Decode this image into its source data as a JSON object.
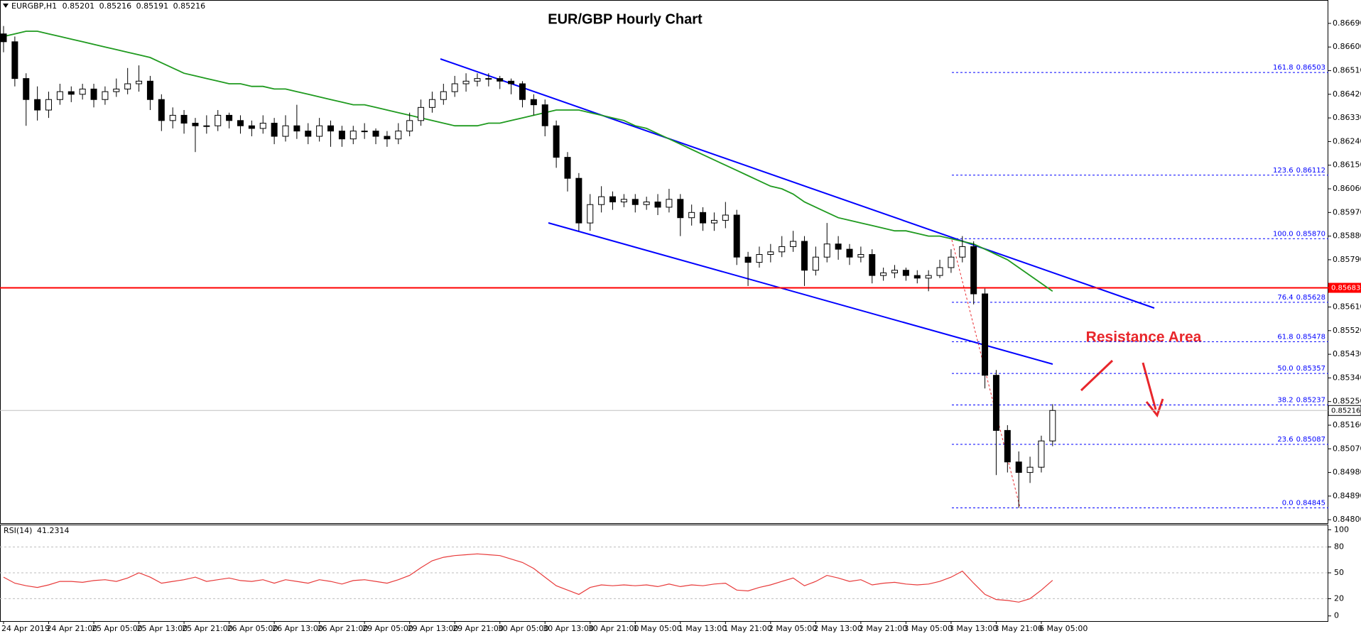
{
  "header": {
    "symbol": "EURGBP,H1",
    "ohlc": [
      0.85201,
      0.85216,
      0.85191,
      0.85216
    ]
  },
  "chart_data": [
    {
      "type": "candlestick",
      "title": "EUR/GBP Hourly Chart",
      "annotation": "Resistance Area",
      "categories": [
        "24 Apr 2019",
        null,
        null,
        null,
        "24 Apr 21:00",
        null,
        null,
        null,
        "25 Apr 05:00",
        null,
        null,
        null,
        "25 Apr 13:00",
        null,
        null,
        null,
        "25 Apr 21:00",
        null,
        null,
        null,
        "26 Apr 05:00",
        null,
        null,
        null,
        "26 Apr 13:00",
        null,
        null,
        null,
        "26 Apr 21:00",
        null,
        null,
        null,
        "29 Apr 05:00",
        null,
        null,
        null,
        "29 Apr 13:00",
        null,
        null,
        null,
        "29 Apr 21:00",
        null,
        null,
        null,
        "30 Apr 05:00",
        null,
        null,
        null,
        "30 Apr 13:00",
        null,
        null,
        null,
        "30 Apr 21:00",
        null,
        null,
        null,
        "1 May 05:00",
        null,
        null,
        null,
        "1 May 13:00",
        null,
        null,
        null,
        "1 May 21:00",
        null,
        null,
        null,
        "2 May 05:00",
        null,
        null,
        null,
        "2 May 13:00",
        null,
        null,
        null,
        "2 May 21:00",
        null,
        null,
        null,
        "3 May 05:00",
        null,
        null,
        null,
        "3 May 13:00",
        null,
        null,
        null,
        "3 May 21:00",
        null,
        null,
        null,
        "6 May 05:00",
        null
      ],
      "open": [
        0.8665,
        0.8662,
        0.8648,
        0.864,
        0.8636,
        0.864,
        0.8643,
        0.8642,
        0.8644,
        0.864,
        0.8643,
        0.8644,
        0.8646,
        0.8647,
        0.864,
        0.8632,
        0.8634,
        0.8631,
        0.863,
        0.863,
        0.8634,
        0.8632,
        0.863,
        0.8629,
        0.8631,
        0.8626,
        0.863,
        0.8628,
        0.8626,
        0.863,
        0.8628,
        0.8625,
        0.8628,
        0.8628,
        0.8626,
        0.8625,
        0.8628,
        0.8632,
        0.8637,
        0.864,
        0.8643,
        0.8646,
        0.8647,
        0.8648,
        0.8648,
        0.8647,
        0.8646,
        0.864,
        0.8638,
        0.863,
        0.8618,
        0.861,
        0.8593,
        0.86,
        0.8603,
        0.8601,
        0.8602,
        0.86,
        0.8601,
        0.8599,
        0.8602,
        0.8595,
        0.8597,
        0.8593,
        0.8594,
        0.8596,
        0.858,
        0.8578,
        0.8581,
        0.8582,
        0.8584,
        0.8586,
        0.8575,
        0.858,
        0.8585,
        0.8583,
        0.858,
        0.8581,
        0.8573,
        0.8574,
        0.8575,
        0.8573,
        0.8572,
        0.8573,
        0.8576,
        0.858,
        0.8584,
        0.8566,
        0.8535,
        0.8514,
        0.8502,
        0.8498,
        0.85,
        0.851
      ],
      "high": [
        0.8668,
        0.8664,
        0.865,
        0.8645,
        0.8643,
        0.8646,
        0.8645,
        0.8646,
        0.8646,
        0.8645,
        0.8648,
        0.8652,
        0.8653,
        0.8649,
        0.8642,
        0.8637,
        0.8636,
        0.8633,
        0.8634,
        0.8636,
        0.8635,
        0.8634,
        0.8632,
        0.8634,
        0.8633,
        0.8634,
        0.8638,
        0.8631,
        0.8633,
        0.8632,
        0.863,
        0.863,
        0.8631,
        0.8629,
        0.8628,
        0.8631,
        0.8635,
        0.864,
        0.8643,
        0.8646,
        0.8649,
        0.865,
        0.865,
        0.865,
        0.8649,
        0.8648,
        0.8647,
        0.8642,
        0.864,
        0.8632,
        0.862,
        0.8612,
        0.8604,
        0.8607,
        0.8605,
        0.8604,
        0.8604,
        0.8603,
        0.8604,
        0.8606,
        0.8604,
        0.86,
        0.8599,
        0.8597,
        0.8601,
        0.8598,
        0.8582,
        0.8584,
        0.8585,
        0.8588,
        0.859,
        0.8588,
        0.8584,
        0.8593,
        0.8588,
        0.8585,
        0.8584,
        0.8583,
        0.8576,
        0.8577,
        0.8576,
        0.8575,
        0.8575,
        0.8579,
        0.8583,
        0.8588,
        0.8586,
        0.8568,
        0.8537,
        0.8516,
        0.8506,
        0.8504,
        0.8512,
        0.8524
      ],
      "low": [
        0.8658,
        0.8645,
        0.863,
        0.8632,
        0.8633,
        0.8638,
        0.8639,
        0.864,
        0.8637,
        0.8638,
        0.8641,
        0.8642,
        0.8643,
        0.8636,
        0.8628,
        0.8629,
        0.8627,
        0.862,
        0.8627,
        0.8628,
        0.8629,
        0.8627,
        0.8626,
        0.8627,
        0.8623,
        0.8624,
        0.8625,
        0.8623,
        0.8624,
        0.8622,
        0.8622,
        0.8623,
        0.8625,
        0.8623,
        0.8622,
        0.8623,
        0.8626,
        0.863,
        0.8635,
        0.8638,
        0.8641,
        0.8643,
        0.8645,
        0.8645,
        0.8644,
        0.8642,
        0.8637,
        0.8634,
        0.8626,
        0.8614,
        0.8605,
        0.859,
        0.859,
        0.8597,
        0.8598,
        0.8599,
        0.8597,
        0.8598,
        0.8596,
        0.8597,
        0.8588,
        0.8592,
        0.859,
        0.859,
        0.8591,
        0.8577,
        0.8569,
        0.8576,
        0.8578,
        0.858,
        0.8582,
        0.8569,
        0.8573,
        0.8578,
        0.8579,
        0.8577,
        0.8578,
        0.857,
        0.8571,
        0.8572,
        0.8571,
        0.857,
        0.8567,
        0.8572,
        0.8574,
        0.8578,
        0.8562,
        0.853,
        0.8497,
        0.8498,
        0.84845,
        0.8494,
        0.8498,
        0.8508
      ],
      "close": [
        0.8662,
        0.8648,
        0.864,
        0.8636,
        0.864,
        0.8643,
        0.8642,
        0.8644,
        0.864,
        0.8643,
        0.8644,
        0.8646,
        0.8647,
        0.864,
        0.8632,
        0.8634,
        0.8631,
        0.863,
        0.863,
        0.8634,
        0.8632,
        0.863,
        0.8629,
        0.8631,
        0.8626,
        0.863,
        0.8628,
        0.8626,
        0.863,
        0.8628,
        0.8625,
        0.8628,
        0.8628,
        0.8626,
        0.8625,
        0.8628,
        0.8632,
        0.8637,
        0.864,
        0.8643,
        0.8646,
        0.8647,
        0.8648,
        0.8648,
        0.8647,
        0.8646,
        0.864,
        0.8638,
        0.863,
        0.8618,
        0.861,
        0.8593,
        0.86,
        0.8603,
        0.8601,
        0.8602,
        0.86,
        0.8601,
        0.8599,
        0.8602,
        0.8595,
        0.8597,
        0.8593,
        0.8594,
        0.8596,
        0.858,
        0.8578,
        0.8581,
        0.8582,
        0.8584,
        0.8586,
        0.8575,
        0.858,
        0.8585,
        0.8583,
        0.858,
        0.8581,
        0.8573,
        0.8574,
        0.8575,
        0.8573,
        0.8572,
        0.8573,
        0.8576,
        0.858,
        0.8584,
        0.8566,
        0.8535,
        0.8514,
        0.8502,
        0.8498,
        0.85,
        0.851,
        0.85216
      ],
      "up_color": "#ffffff",
      "down_color": "#000000",
      "ma": {
        "color": "#1f9a1f",
        "values": [
          0.8664,
          0.8665,
          0.8666,
          0.8666,
          0.8665,
          0.8664,
          0.8663,
          0.8662,
          0.8661,
          0.866,
          0.8659,
          0.8658,
          0.8657,
          0.8656,
          0.8654,
          0.8652,
          0.865,
          0.8649,
          0.8648,
          0.8647,
          0.8646,
          0.8646,
          0.8645,
          0.8645,
          0.8644,
          0.8644,
          0.8643,
          0.8642,
          0.8641,
          0.864,
          0.8639,
          0.8638,
          0.8638,
          0.8637,
          0.8636,
          0.8635,
          0.8634,
          0.8633,
          0.8632,
          0.8631,
          0.863,
          0.863,
          0.863,
          0.8631,
          0.8631,
          0.8632,
          0.8633,
          0.8634,
          0.8635,
          0.8636,
          0.8636,
          0.8636,
          0.8635,
          0.8634,
          0.8633,
          0.8632,
          0.863,
          0.8629,
          0.8627,
          0.8625,
          0.8623,
          0.8621,
          0.8619,
          0.8617,
          0.8615,
          0.8613,
          0.8611,
          0.8609,
          0.8607,
          0.8606,
          0.8604,
          0.8601,
          0.8599,
          0.8597,
          0.8595,
          0.8594,
          0.8593,
          0.8592,
          0.8591,
          0.859,
          0.859,
          0.8589,
          0.8588,
          0.8588,
          0.8587,
          0.8586,
          0.8585,
          0.8583,
          0.8581,
          0.8579,
          0.8576,
          0.8573,
          0.857,
          0.8567
        ]
      },
      "hline": {
        "value": 0.85683,
        "color": "#ff0000"
      },
      "fib_levels": [
        {
          "ratio": "161.8",
          "price": 0.86503
        },
        {
          "ratio": "123.6",
          "price": 0.86112
        },
        {
          "ratio": "100.0",
          "price": {
            "value": 0.8587,
            "label": "0.85870"
          }
        },
        {
          "ratio": "76.4",
          "price": 0.85628
        },
        {
          "ratio": "61.8",
          "price": 0.85478
        },
        {
          "ratio": "50.0",
          "price": 0.85357
        },
        {
          "ratio": "38.2",
          "price": 0.85237
        },
        {
          "ratio": "23.6",
          "price": 0.85087
        },
        {
          "ratio": "0.0",
          "price": 0.84845
        }
      ],
      "fib_color": "#0000ff",
      "ylim": [
        0.84787,
        0.86779
      ],
      "yticks": [
        {
          "value": 0.8669,
          "label": "0.86690"
        },
        {
          "value": 0.866,
          "label": "0.86600"
        },
        {
          "value": 0.8651,
          "label": "0.86510"
        },
        {
          "value": 0.8642,
          "label": "0.86420"
        },
        {
          "value": 0.8633,
          "label": "0.86330"
        },
        {
          "value": 0.8624,
          "label": "0.86240"
        },
        {
          "value": 0.8615,
          "label": "0.86150"
        },
        {
          "value": 0.8606,
          "label": "0.86060"
        },
        {
          "value": 0.8597,
          "label": "0.85970"
        },
        {
          "value": 0.8588,
          "label": "0.85880"
        },
        {
          "value": 0.8579,
          "label": "0.85790"
        },
        {
          "value": 0.8561,
          "label": "0.85610"
        },
        {
          "value": 0.8552,
          "label": "0.85520"
        },
        {
          "value": 0.8543,
          "label": "0.85430"
        },
        {
          "value": 0.8534,
          "label": "0.85340"
        },
        {
          "value": 0.8525,
          "label": "0.85250"
        },
        {
          "value": 0.8516,
          "label": "0.85160"
        },
        {
          "value": 0.8507,
          "label": "0.85070"
        },
        {
          "value": 0.8498,
          "label": "0.84980"
        },
        {
          "value": 0.8489,
          "label": "0.84890"
        },
        {
          "value": 0.848,
          "label": "0.84800"
        }
      ]
    },
    {
      "type": "line",
      "name": "RSI(14)",
      "color": "#e83a3a",
      "values": [
        45,
        38,
        35,
        33,
        36,
        40,
        40,
        39,
        41,
        42,
        40,
        44,
        50,
        45,
        38,
        40,
        42,
        45,
        40,
        42,
        44,
        41,
        40,
        42,
        38,
        42,
        40,
        38,
        42,
        40,
        37,
        41,
        42,
        40,
        38,
        42,
        47,
        56,
        64,
        68,
        70,
        71,
        72,
        71,
        70,
        66,
        62,
        55,
        45,
        35,
        30,
        25,
        33,
        36,
        35,
        36,
        35,
        36,
        34,
        37,
        34,
        36,
        35,
        37,
        38,
        30,
        29,
        33,
        36,
        40,
        44,
        35,
        40,
        47,
        44,
        40,
        42,
        36,
        38,
        39,
        37,
        36,
        37,
        40,
        45,
        52,
        38,
        25,
        19,
        18,
        16,
        20,
        30,
        41.2314
      ],
      "ylim": [
        -6,
        106
      ],
      "yticks": [
        100,
        80,
        50,
        20,
        0
      ],
      "levels": [
        80,
        50,
        20
      ]
    }
  ]
}
